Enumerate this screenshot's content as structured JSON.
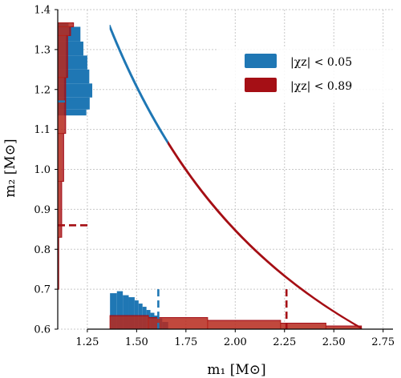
{
  "chart_data": {
    "type": "scatter",
    "title": "",
    "xlabel": "m₁ [M⊙]",
    "ylabel": "m₂ [M⊙]",
    "xlim": [
      1.1,
      2.8
    ],
    "ylim": [
      0.6,
      1.4
    ],
    "xticks": [
      "1.25",
      "1.50",
      "1.75",
      "2.00",
      "2.25",
      "2.50",
      "2.75"
    ],
    "yticks": [
      "0.6",
      "0.7",
      "0.8",
      "0.9",
      "1.0",
      "1.1",
      "1.2",
      "1.3",
      "1.4"
    ],
    "grid": true,
    "legend": {
      "placement": "top-right"
    },
    "series": [
      {
        "name": "|χz| < 0.05",
        "color": "#1f77b4",
        "curve_m1_range": [
          1.365,
          1.66
        ],
        "m1_marginal_bins": [
          [
            1.365,
            1.4,
            0.69
          ],
          [
            1.4,
            1.43,
            0.695
          ],
          [
            1.43,
            1.46,
            0.685
          ],
          [
            1.46,
            1.49,
            0.68
          ],
          [
            1.49,
            1.51,
            0.672
          ],
          [
            1.51,
            1.53,
            0.664
          ],
          [
            1.53,
            1.55,
            0.656
          ],
          [
            1.55,
            1.57,
            0.648
          ],
          [
            1.57,
            1.59,
            0.641
          ],
          [
            1.59,
            1.61,
            0.634
          ],
          [
            1.61,
            1.63,
            0.627
          ],
          [
            1.63,
            1.66,
            0.618
          ]
        ],
        "m2_marginal_bins": [
          [
            1.357,
            1.367,
            1.155
          ],
          [
            1.32,
            1.357,
            1.215
          ],
          [
            1.285,
            1.32,
            1.23
          ],
          [
            1.25,
            1.285,
            1.25
          ],
          [
            1.215,
            1.25,
            1.26
          ],
          [
            1.18,
            1.215,
            1.275
          ],
          [
            1.15,
            1.18,
            1.262
          ],
          [
            1.135,
            1.15,
            1.245
          ]
        ],
        "m1_median_marker": 1.61,
        "m2_median_marker": 1.17
      },
      {
        "name": "|χz| < 0.89",
        "color": "#a50f15",
        "curve_m1_range": [
          1.66,
          2.64
        ],
        "m1_marginal_bins": [
          [
            1.365,
            1.56,
            0.634
          ],
          [
            1.56,
            1.86,
            0.629
          ],
          [
            1.86,
            2.23,
            0.622
          ],
          [
            2.23,
            2.46,
            0.615
          ],
          [
            2.46,
            2.64,
            0.608
          ]
        ],
        "m2_marginal_bins": [
          [
            1.357,
            1.367,
            1.18
          ],
          [
            1.335,
            1.357,
            1.165
          ],
          [
            1.23,
            1.335,
            1.15
          ],
          [
            1.09,
            1.23,
            1.14
          ],
          [
            0.97,
            1.09,
            1.13
          ],
          [
            0.83,
            0.97,
            1.12
          ],
          [
            0.7,
            0.83,
            1.105
          ],
          [
            0.6,
            0.7,
            1.1
          ]
        ],
        "m1_median_marker": 2.26,
        "m2_median_marker": 0.86
      }
    ]
  }
}
